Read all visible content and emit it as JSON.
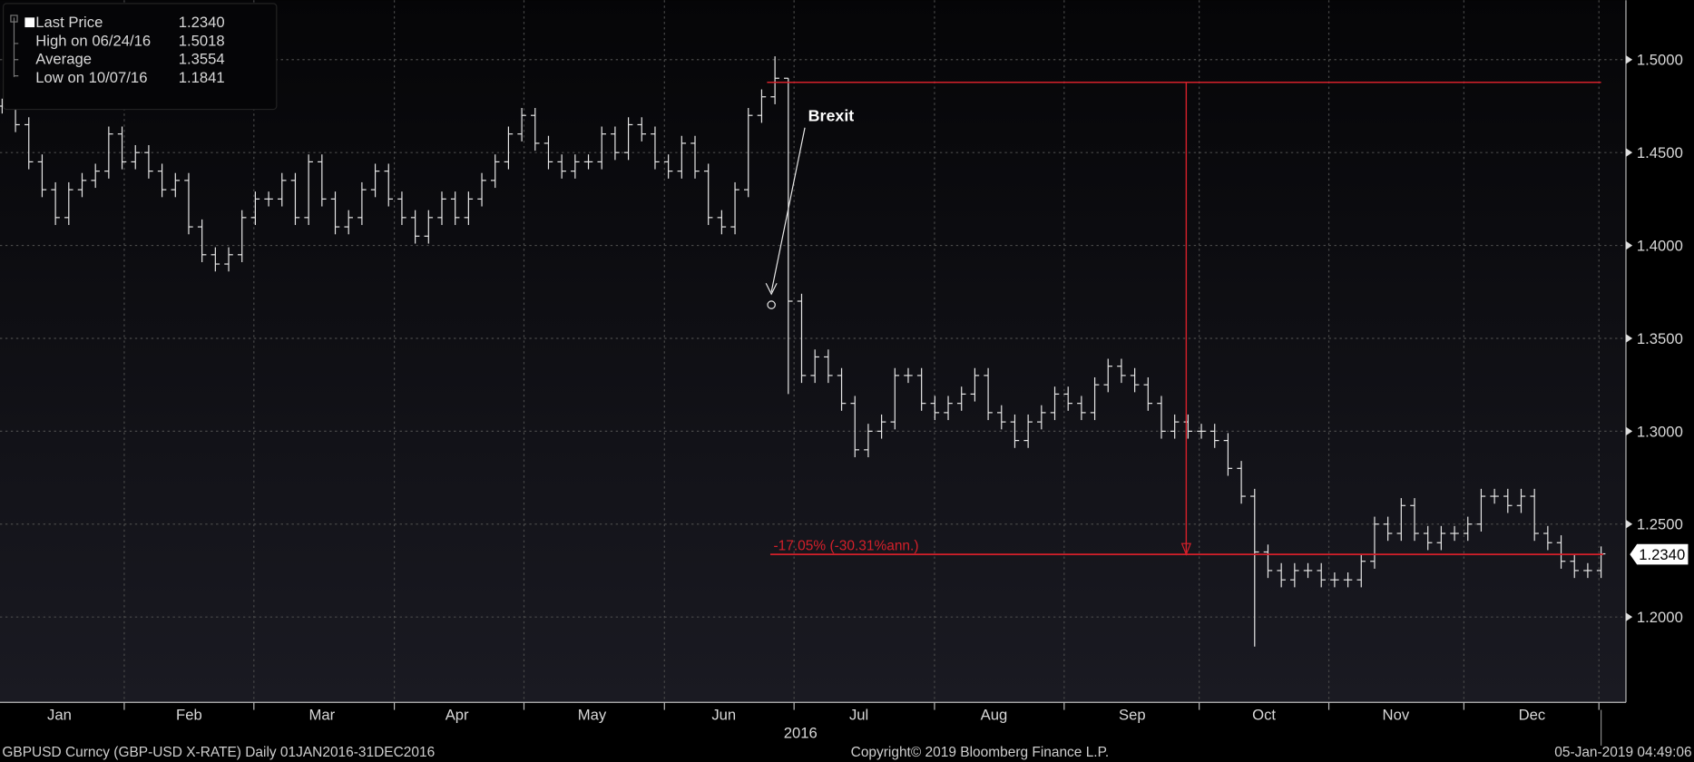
{
  "legend": {
    "last_price_label": "Last Price",
    "last_price_value": "1.2340",
    "high_label": "High on 06/24/16",
    "high_value": "1.5018",
    "average_label": "Average",
    "average_value": "1.3554",
    "low_label": "Low on 10/07/16",
    "low_value": "1.1841"
  },
  "annotation": {
    "brexit": "Brexit",
    "change": "-17.05% (-30.31%ann.)",
    "last_price_tag": "1.2340"
  },
  "footer": {
    "left": "GBPUSD Curncy (GBP-USD X-RATE)  Daily 01JAN2016-31DEC2016",
    "center": "Copyright© 2019 Bloomberg Finance L.P.",
    "right": "05-Jan-2019 04:49:06"
  },
  "colors": {
    "background": "#0b0b0f",
    "bars": "#e8e8e8",
    "annotation": "#d4202a",
    "grid": "#555555"
  },
  "chart_data": {
    "type": "bar",
    "subtype": "ohlc",
    "xlabel": "2016",
    "x_ticks": [
      "Jan",
      "Feb",
      "Mar",
      "Apr",
      "May",
      "Jun",
      "Jul",
      "Aug",
      "Sep",
      "Oct",
      "Nov",
      "Dec"
    ],
    "y_ticks": [
      "1.5000",
      "1.4500",
      "1.4000",
      "1.3500",
      "1.3000",
      "1.2500",
      "1.2000"
    ],
    "ylim": [
      1.155,
      1.52
    ],
    "grid": true,
    "legend_position": "top-left",
    "axis_side": "right",
    "closes": [
      1.475,
      1.465,
      1.445,
      1.43,
      1.415,
      1.43,
      1.435,
      1.44,
      1.46,
      1.445,
      1.45,
      1.44,
      1.43,
      1.435,
      1.41,
      1.395,
      1.39,
      1.395,
      1.415,
      1.425,
      1.425,
      1.435,
      1.415,
      1.445,
      1.425,
      1.41,
      1.415,
      1.43,
      1.44,
      1.425,
      1.415,
      1.405,
      1.415,
      1.425,
      1.415,
      1.425,
      1.435,
      1.445,
      1.46,
      1.47,
      1.455,
      1.445,
      1.44,
      1.445,
      1.445,
      1.46,
      1.45,
      1.465,
      1.46,
      1.445,
      1.44,
      1.455,
      1.44,
      1.415,
      1.41,
      1.43,
      1.47,
      1.48,
      1.49,
      1.37,
      1.33,
      1.34,
      1.33,
      1.315,
      1.29,
      1.3,
      1.305,
      1.33,
      1.33,
      1.315,
      1.31,
      1.315,
      1.32,
      1.33,
      1.31,
      1.305,
      1.295,
      1.305,
      1.31,
      1.32,
      1.315,
      1.31,
      1.325,
      1.335,
      1.33,
      1.325,
      1.315,
      1.3,
      1.305,
      1.3,
      1.3,
      1.295,
      1.28,
      1.265,
      1.235,
      1.225,
      1.22,
      1.225,
      1.225,
      1.22,
      1.22,
      1.22,
      1.23,
      1.25,
      1.245,
      1.26,
      1.245,
      1.24,
      1.245,
      1.245,
      1.25,
      1.265,
      1.265,
      1.26,
      1.265,
      1.245,
      1.24,
      1.23,
      1.225,
      1.225,
      1.234
    ],
    "high": 1.5018,
    "low": 1.1841,
    "reference_level": 1.4877,
    "last": 1.234
  }
}
